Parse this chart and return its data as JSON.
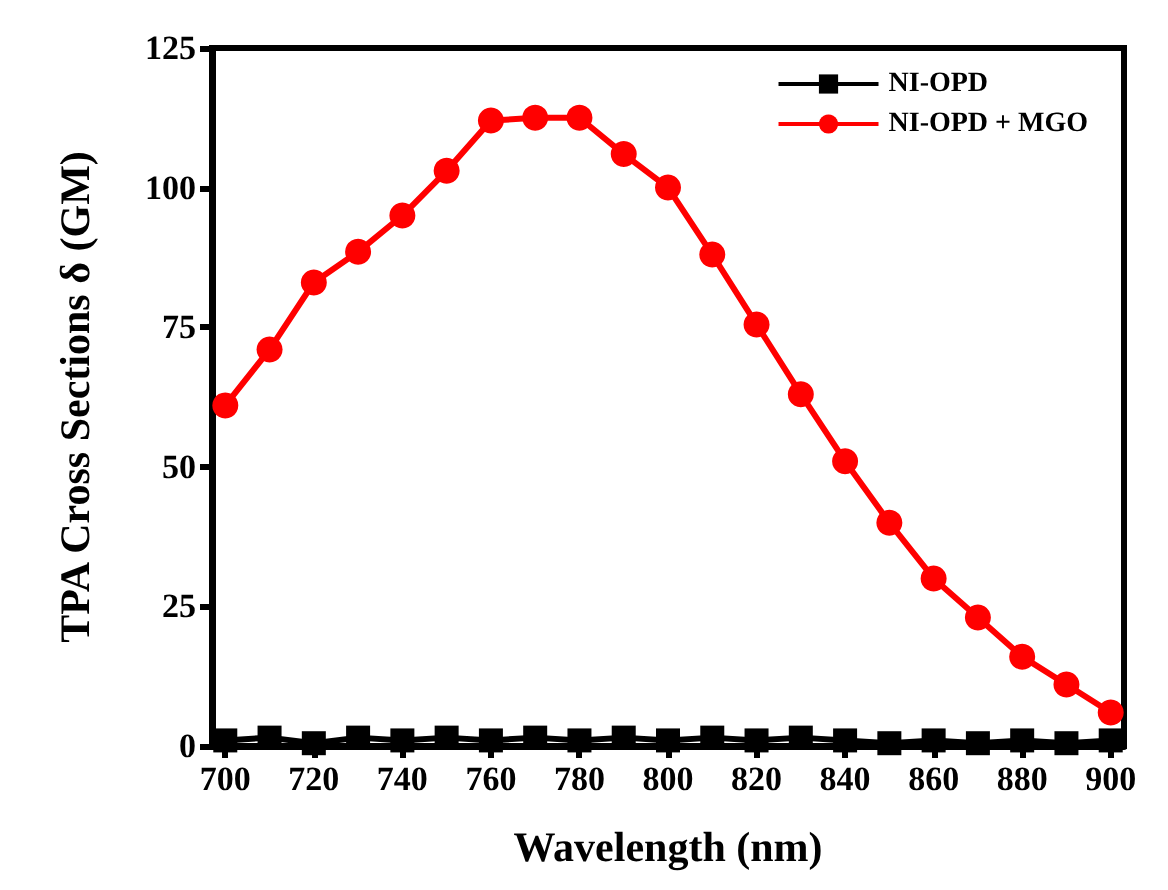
{
  "chart_data": {
    "type": "line",
    "xlabel": "Wavelength (nm)",
    "ylabel": "TPA Cross Sections δ (GM)",
    "x": [
      700,
      710,
      720,
      730,
      740,
      750,
      760,
      770,
      780,
      790,
      800,
      810,
      820,
      830,
      840,
      850,
      860,
      870,
      880,
      890,
      900
    ],
    "xlim": [
      697,
      903
    ],
    "xticks": [
      700,
      720,
      740,
      760,
      780,
      800,
      820,
      840,
      860,
      880,
      900
    ],
    "ylim": [
      0,
      125
    ],
    "yticks": [
      0,
      25,
      50,
      75,
      100,
      125
    ],
    "series": [
      {
        "name": "NI-OPD",
        "color": "#000000",
        "marker": "square",
        "values": [
          1,
          1.5,
          0.5,
          1.5,
          1,
          1.5,
          1,
          1.5,
          1,
          1.5,
          1,
          1.5,
          1,
          1.5,
          1,
          0.5,
          1,
          0.5,
          1,
          0.5,
          1
        ]
      },
      {
        "name": "NI-OPD + MGO",
        "color": "#ff0000",
        "marker": "circle",
        "values": [
          61,
          71,
          83,
          88.5,
          95,
          103,
          112,
          112.5,
          112.5,
          106,
          100,
          88,
          75.5,
          63,
          51,
          40,
          30,
          23,
          16,
          11,
          6
        ]
      }
    ],
    "legend": "top right",
    "grid": false,
    "line_style": "solid"
  }
}
